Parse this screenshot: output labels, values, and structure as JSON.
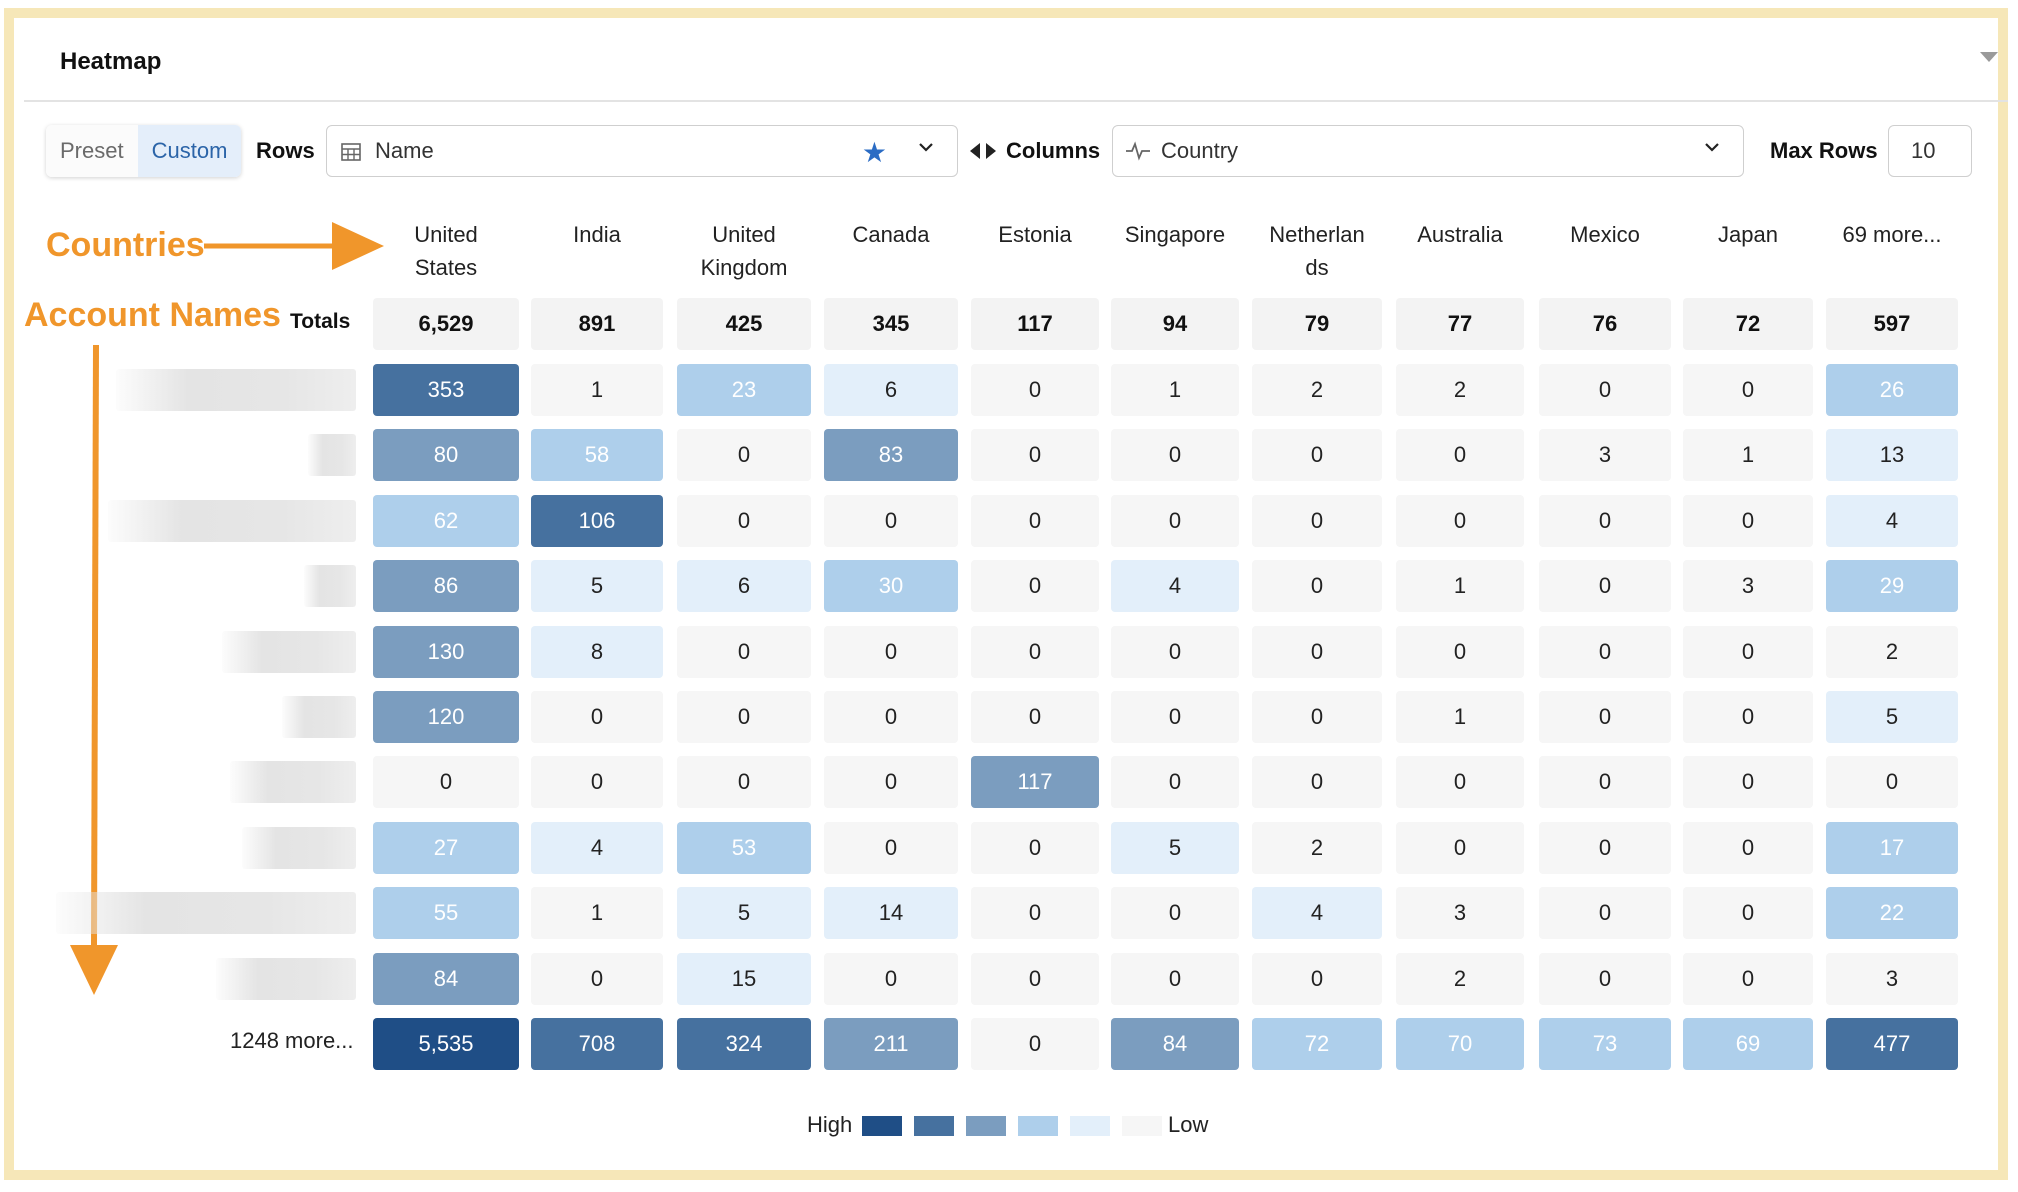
{
  "panel": {
    "title": "Heatmap"
  },
  "toolbar": {
    "preset_label": "Preset",
    "custom_label": "Custom",
    "rows_label": "Rows",
    "rows_value": "Name",
    "columns_label": "Columns",
    "columns_value": "Country",
    "max_rows_label": "Max Rows",
    "max_rows_value": "10"
  },
  "annotations": {
    "countries": "Countries",
    "account_names": "Account Names"
  },
  "colors": {
    "level5": "#1f4e86",
    "level4": "#46719f",
    "level3": "#7b9dbf",
    "level2": "#aecfeb",
    "level1": "#e3effa",
    "level0": "#f6f6f6",
    "accent": "#f0962b"
  },
  "chart_data": {
    "type": "heatmap",
    "columns": [
      "United States",
      "India",
      "United Kingdom",
      "Canada",
      "Estonia",
      "Singapore",
      "Netherlands",
      "Australia",
      "Mexico",
      "Japan",
      "69 more..."
    ],
    "column_header_lines": [
      [
        "United",
        "States"
      ],
      [
        "India"
      ],
      [
        "United",
        "Kingdom"
      ],
      [
        "Canada"
      ],
      [
        "Estonia"
      ],
      [
        "Singapore"
      ],
      [
        "Netherlan",
        "ds"
      ],
      [
        "Australia"
      ],
      [
        "Mexico"
      ],
      [
        "Japan"
      ],
      [
        "69 more..."
      ]
    ],
    "totals_label": "Totals",
    "totals": [
      "6,529",
      "891",
      "425",
      "345",
      "117",
      "94",
      "79",
      "77",
      "76",
      "72",
      "597"
    ],
    "rows": [
      [
        353,
        1,
        23,
        6,
        0,
        1,
        2,
        2,
        0,
        0,
        26
      ],
      [
        80,
        58,
        0,
        83,
        0,
        0,
        0,
        0,
        3,
        1,
        13
      ],
      [
        62,
        106,
        0,
        0,
        0,
        0,
        0,
        0,
        0,
        0,
        4
      ],
      [
        86,
        5,
        6,
        30,
        0,
        4,
        0,
        1,
        0,
        3,
        29
      ],
      [
        130,
        8,
        0,
        0,
        0,
        0,
        0,
        0,
        0,
        0,
        2
      ],
      [
        120,
        0,
        0,
        0,
        0,
        0,
        0,
        1,
        0,
        0,
        5
      ],
      [
        0,
        0,
        0,
        0,
        117,
        0,
        0,
        0,
        0,
        0,
        0
      ],
      [
        27,
        4,
        53,
        0,
        0,
        5,
        2,
        0,
        0,
        0,
        17
      ],
      [
        55,
        1,
        5,
        14,
        0,
        0,
        4,
        3,
        0,
        0,
        22
      ],
      [
        84,
        0,
        15,
        0,
        0,
        0,
        0,
        2,
        0,
        0,
        3
      ]
    ],
    "levels": [
      [
        4,
        0,
        2,
        1,
        0,
        0,
        0,
        0,
        0,
        0,
        2
      ],
      [
        3,
        2,
        0,
        3,
        0,
        0,
        0,
        0,
        0,
        0,
        1
      ],
      [
        2,
        4,
        0,
        0,
        0,
        0,
        0,
        0,
        0,
        0,
        1
      ],
      [
        3,
        1,
        1,
        2,
        0,
        1,
        0,
        0,
        0,
        0,
        2
      ],
      [
        3,
        1,
        0,
        0,
        0,
        0,
        0,
        0,
        0,
        0,
        0
      ],
      [
        3,
        0,
        0,
        0,
        0,
        0,
        0,
        0,
        0,
        0,
        1
      ],
      [
        0,
        0,
        0,
        0,
        3,
        0,
        0,
        0,
        0,
        0,
        0
      ],
      [
        2,
        1,
        2,
        0,
        0,
        1,
        0,
        0,
        0,
        0,
        2
      ],
      [
        2,
        0,
        1,
        1,
        0,
        0,
        1,
        0,
        0,
        0,
        2
      ],
      [
        3,
        0,
        1,
        0,
        0,
        0,
        0,
        0,
        0,
        0,
        0
      ]
    ],
    "more_rows_label": "1248 more...",
    "more_rows_values": [
      "5,535",
      "708",
      "324",
      "211",
      "0",
      "84",
      "72",
      "70",
      "73",
      "69",
      "477"
    ],
    "more_rows_levels": [
      5,
      4,
      4,
      3,
      0,
      3,
      2,
      2,
      2,
      2,
      4
    ],
    "legend": {
      "high": "High",
      "low": "Low"
    }
  }
}
